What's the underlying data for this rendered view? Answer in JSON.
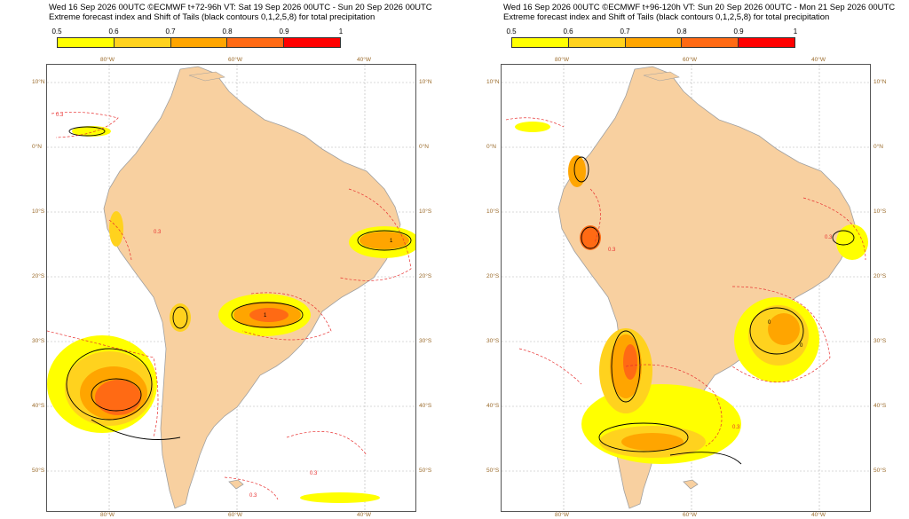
{
  "panels": [
    {
      "title_line1": "Wed 16 Sep 2026 00UTC ©ECMWF t+72-96h  VT: Sat 19 Sep 2026 00UTC - Sun 20 Sep 2026 00UTC",
      "title_line2": "Extreme forecast index and Shift of Tails (black contours 0,1,2,5,8) for total precipitation"
    },
    {
      "title_line1": "Wed 16 Sep 2026 00UTC ©ECMWF t+96-120h  VT: Sun 20 Sep 2026 00UTC - Mon 21 Sep 2026 00UTC",
      "title_line2": "Extreme forecast index and Shift of Tails (black contours 0,1,2,5,8) for total precipitation"
    }
  ],
  "colorbar": {
    "ticks": [
      "0.5",
      "0.6",
      "0.7",
      "0.8",
      "0.9",
      "1"
    ],
    "colors": [
      "#ffff00",
      "#ffd21e",
      "#ffa500",
      "#ff6a14",
      "#ff0000"
    ]
  },
  "axes": {
    "lon_labels": [
      "80°W",
      "60°W",
      "40°W"
    ],
    "lat_labels": [
      "10°N",
      "0°N",
      "10°S",
      "20°S",
      "30°S",
      "40°S",
      "50°S"
    ]
  },
  "contour_labels": [
    "0.3",
    "1",
    "0"
  ],
  "colors": {
    "land": "#f8d0a0",
    "coast": "#a0a0a0",
    "dashed_contour": "#e83030",
    "sot_contour": "#000000"
  }
}
